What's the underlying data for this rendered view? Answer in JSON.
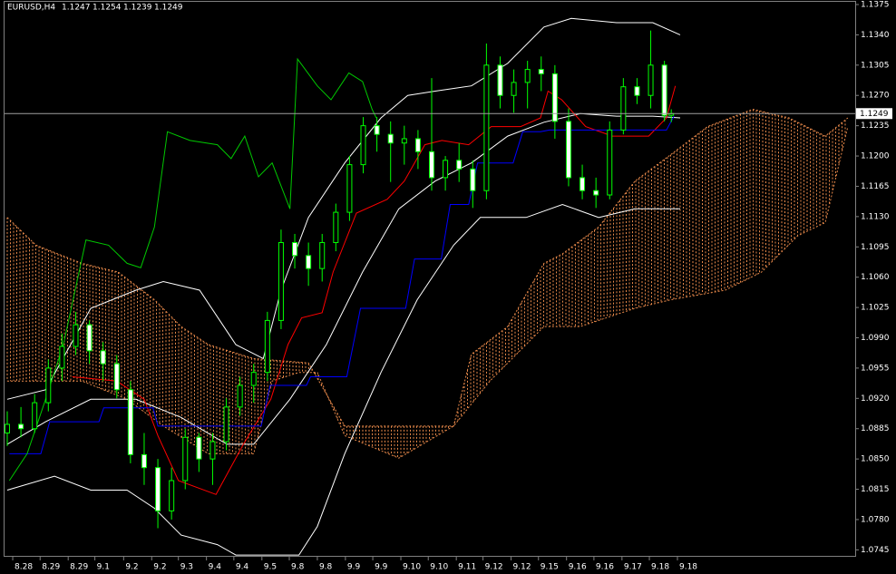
{
  "chart_data": {
    "type": "candlestick",
    "symbol": "EURUSD,H4",
    "ohlc": [
      1.1247,
      1.1254,
      1.1239,
      1.1249
    ],
    "xlim": [
      0,
      124
    ],
    "ylim": [
      1.0737,
      1.1375
    ],
    "yticks": [
      1.1375,
      {
        "value": 1.134,
        "label": "1.1340"
      },
      1.1305,
      {
        "value": 1.127,
        "label": "1.1270"
      },
      1.1235,
      {
        "value": 1.12,
        "label": "1.1200"
      },
      1.1165,
      {
        "value": 1.113,
        "label": "1.1130"
      },
      1.1095,
      {
        "value": 1.106,
        "label": "1.1060"
      },
      1.1025,
      {
        "value": 1.099,
        "label": "1.0990"
      },
      1.0955,
      {
        "value": 1.092,
        "label": "1.0920"
      },
      1.0885,
      {
        "value": 1.085,
        "label": "1.0850"
      },
      1.0815,
      {
        "value": 1.078,
        "label": "1.0780"
      },
      1.0745
    ],
    "xticks": [
      {
        "value": 0.8,
        "label": "8.28"
      },
      {
        "value": 4.8,
        "label": "8.29"
      },
      {
        "value": 8.9,
        "label": "8.29"
      },
      {
        "value": 12.8,
        "label": "9.1"
      },
      {
        "value": 17,
        "label": "9.2"
      },
      {
        "value": 21.1,
        "label": "9.2"
      },
      {
        "value": 25,
        "label": "9.3"
      },
      {
        "value": 29.1,
        "label": "9.4"
      },
      {
        "value": 33.1,
        "label": "9.4"
      },
      {
        "value": 37.2,
        "label": "9.5"
      },
      {
        "value": 41.2,
        "label": "9.8"
      },
      {
        "value": 45.3,
        "label": "9.8"
      },
      {
        "value": 49.4,
        "label": "9.9"
      },
      {
        "value": 53.4,
        "label": "9.9"
      },
      {
        "value": 57.5,
        "label": "9.10"
      },
      {
        "value": 61.5,
        "label": "9.10"
      },
      {
        "value": 65.6,
        "label": "9.11"
      },
      {
        "value": 69.5,
        "label": "9.12"
      },
      {
        "value": 73.6,
        "label": "9.12"
      },
      {
        "value": 77.6,
        "label": "9.15"
      },
      {
        "value": 81.7,
        "label": "9.16"
      },
      {
        "value": 85.7,
        "label": "9.16"
      },
      {
        "value": 89.8,
        "label": "9.17"
      },
      {
        "value": 93.8,
        "label": "9.18"
      },
      {
        "value": 97.9,
        "label": "9.18"
      }
    ],
    "last_price": 1.1249,
    "candles": {
      "bull_color": "#000000",
      "bear_color": "#ffffff",
      "outline_color": "#00ff00",
      "x": [
        0,
        2,
        4,
        6,
        8,
        10,
        12,
        14,
        16,
        18,
        20,
        22,
        24,
        26,
        28,
        30,
        32,
        34,
        36,
        38,
        40,
        42,
        44,
        46,
        48,
        50,
        52,
        54,
        56,
        58,
        60,
        62,
        64,
        66,
        68,
        70,
        72,
        74,
        76,
        78,
        80,
        82,
        84,
        86,
        88,
        90,
        92,
        94,
        96,
        97
      ],
      "open": [
        1.088,
        1.089,
        1.0885,
        1.0915,
        1.0955,
        1.098,
        1.1005,
        1.0975,
        1.096,
        1.093,
        1.0855,
        1.084,
        1.079,
        1.0825,
        1.0875,
        1.085,
        1.087,
        1.091,
        1.0935,
        1.095,
        1.101,
        1.11,
        1.1085,
        1.107,
        1.11,
        1.1135,
        1.119,
        1.1235,
        1.1225,
        1.1215,
        1.122,
        1.1205,
        1.1175,
        1.1195,
        1.1185,
        1.116,
        1.1305,
        1.127,
        1.1285,
        1.13,
        1.1295,
        1.124,
        1.1175,
        1.116,
        1.1155,
        1.123,
        1.128,
        1.127,
        1.1305,
        1.1247
      ],
      "high": [
        1.0905,
        1.091,
        1.0925,
        1.0965,
        1.0995,
        1.102,
        1.101,
        1.0985,
        1.097,
        1.094,
        1.088,
        1.085,
        1.084,
        1.0885,
        1.088,
        1.088,
        1.092,
        1.0945,
        1.096,
        1.102,
        1.1115,
        1.111,
        1.11,
        1.111,
        1.1145,
        1.12,
        1.1245,
        1.1245,
        1.124,
        1.1235,
        1.123,
        1.129,
        1.12,
        1.1215,
        1.1195,
        1.133,
        1.1315,
        1.13,
        1.131,
        1.1315,
        1.1305,
        1.1255,
        1.119,
        1.1175,
        1.124,
        1.129,
        1.129,
        1.1345,
        1.131,
        1.1254
      ],
      "low": [
        1.0865,
        1.0875,
        1.088,
        1.0905,
        1.094,
        1.097,
        1.096,
        1.094,
        1.092,
        1.0845,
        1.082,
        1.077,
        1.078,
        1.0815,
        1.0835,
        1.082,
        1.086,
        1.09,
        1.0915,
        1.094,
        1.1,
        1.107,
        1.105,
        1.1055,
        1.109,
        1.1125,
        1.118,
        1.1205,
        1.117,
        1.119,
        1.1185,
        1.116,
        1.116,
        1.117,
        1.114,
        1.115,
        1.1255,
        1.125,
        1.1255,
        1.1275,
        1.122,
        1.1165,
        1.115,
        1.114,
        1.115,
        1.1225,
        1.126,
        1.1255,
        1.124,
        1.1239
      ],
      "close": [
        1.089,
        1.0885,
        1.0915,
        1.0955,
        1.098,
        1.1005,
        1.0975,
        1.096,
        1.093,
        1.0855,
        1.084,
        1.079,
        1.0825,
        1.0875,
        1.085,
        1.087,
        1.091,
        1.0935,
        1.095,
        1.101,
        1.11,
        1.1085,
        1.107,
        1.11,
        1.1135,
        1.119,
        1.1235,
        1.1225,
        1.1215,
        1.122,
        1.1205,
        1.1175,
        1.1195,
        1.1185,
        1.116,
        1.1305,
        1.127,
        1.1285,
        1.13,
        1.1295,
        1.124,
        1.1175,
        1.116,
        1.1155,
        1.123,
        1.128,
        1.127,
        1.1305,
        1.1247,
        1.1249
      ]
    },
    "cloud": {
      "color": "#e8894a",
      "span_a": {
        "x": [
          0,
          4.2,
          10.9,
          16.2,
          21.5,
          25.4,
          29.4,
          36,
          44,
          49.3,
          57.2,
          65.2,
          67.8,
          73.1,
          78.4,
          81.1,
          86.4,
          91.7,
          97,
          102.3,
          108.9,
          114.2,
          119.5,
          122.8
        ],
        "values": [
          1.1129,
          1.1097,
          1.1076,
          1.1066,
          1.1034,
          1.1003,
          1.0982,
          1.0966,
          1.0961,
          1.0888,
          1.0888,
          1.0888,
          1.0971,
          1.1003,
          1.1076,
          1.1087,
          1.1118,
          1.1171,
          1.1202,
          1.1234,
          1.1254,
          1.1244,
          1.1223,
          1.1244
        ]
      },
      "span_b": {
        "x": [
          0,
          10.9,
          17.5,
          22.8,
          29.4,
          36,
          38.7,
          42.6,
          45.3,
          49.3,
          57.2,
          65.2,
          70.5,
          78.4,
          83.7,
          91.7,
          97,
          104.9,
          110.2,
          115.5,
          119.5,
          122.8
        ],
        "values": [
          1.094,
          1.094,
          1.0919,
          1.0888,
          1.0856,
          1.0856,
          1.094,
          1.095,
          1.095,
          1.0877,
          1.0851,
          1.0888,
          1.094,
          1.1003,
          1.1003,
          1.1024,
          1.1034,
          1.1045,
          1.1066,
          1.1108,
          1.1123,
          1.1234
        ]
      }
    },
    "series": [
      {
        "color": "#ffffff",
        "x": [
          0,
          5.6,
          12.2,
          18.8,
          22.8,
          28.1,
          33.4,
          37.4,
          40,
          44,
          49.3,
          54.6,
          58.5,
          62.5,
          67.8,
          73.1,
          78.4,
          82.4,
          89,
          94.3,
          98.3
        ],
        "values": [
          1.0919,
          1.093,
          1.1024,
          1.1045,
          1.1055,
          1.1045,
          1.0982,
          1.0966,
          1.1045,
          1.1129,
          1.1192,
          1.1244,
          1.127,
          1.1275,
          1.1281,
          1.1307,
          1.1349,
          1.1359,
          1.1354,
          1.1354,
          1.134
        ]
      },
      {
        "color": "#ffffff",
        "x": [
          0,
          5.6,
          12.2,
          18.8,
          25.4,
          32.1,
          36,
          41.3,
          46.6,
          51.9,
          57.2,
          62.5,
          67.8,
          73.1,
          78.4,
          83.7,
          89,
          94.3,
          98.3
        ],
        "values": [
          1.0867,
          1.0893,
          1.0919,
          1.0919,
          1.0898,
          1.0867,
          1.0867,
          1.0919,
          1.0982,
          1.1066,
          1.1139,
          1.1171,
          1.1192,
          1.1223,
          1.1239,
          1.1249,
          1.1246,
          1.1246,
          1.1244
        ]
      },
      {
        "color": "#ffffff",
        "x": [
          0,
          6.9,
          12.2,
          17.5,
          21.5,
          25.4,
          30.7,
          33.4,
          42.6,
          45.3,
          49.3,
          54.6,
          59.9,
          65.2,
          69.1,
          75.8,
          81.1,
          86.4,
          91.7,
          98.3
        ],
        "values": [
          1.0814,
          1.083,
          1.0814,
          1.0814,
          1.0793,
          1.0762,
          1.0751,
          1.0739,
          1.0739,
          1.0772,
          1.0856,
          1.095,
          1.1034,
          1.1097,
          1.1129,
          1.1129,
          1.1144,
          1.1129,
          1.1139,
          1.1139
        ]
      },
      {
        "color": "#ff0000",
        "x": [
          9.5,
          16,
          20,
          22,
          25,
          30.5,
          34.5,
          38.5,
          41,
          43,
          46,
          47.6,
          51,
          55.5,
          58,
          61,
          63.5,
          67.4,
          70.7,
          75,
          77.9,
          79,
          81,
          84.5,
          88.4,
          93.7,
          96.3,
          97.6
        ],
        "values": [
          1.0945,
          1.094,
          1.0919,
          1.0877,
          1.0825,
          1.0809,
          1.0867,
          1.0919,
          1.0982,
          1.1013,
          1.1019,
          1.1066,
          1.1134,
          1.115,
          1.1171,
          1.1213,
          1.1218,
          1.1213,
          1.1234,
          1.1234,
          1.1244,
          1.1275,
          1.1265,
          1.1234,
          1.1223,
          1.1223,
          1.1244,
          1.1281
        ]
      },
      {
        "color": "#0000ff",
        "x": [
          0.3,
          4.9,
          6.2,
          13.4,
          14.1,
          21.3,
          22,
          37.1,
          38.4,
          43.7,
          44.3,
          49.6,
          51.6,
          58.2,
          59.5,
          63.4,
          64.7,
          67.4,
          68.7,
          73.9,
          75.3,
          77.9,
          79.2,
          96.3,
          97.4
        ],
        "values": [
          1.0856,
          1.0856,
          1.0893,
          1.0893,
          1.0909,
          1.0909,
          1.0888,
          1.0888,
          1.0935,
          1.0935,
          1.0945,
          1.0945,
          1.1024,
          1.1024,
          1.1081,
          1.1081,
          1.1144,
          1.1144,
          1.1192,
          1.1192,
          1.1228,
          1.1228,
          1.123,
          1.123,
          1.1246
        ]
      },
      {
        "color": "#00c800",
        "x": [
          0.3,
          2.9,
          5.6,
          8.2,
          11.5,
          14.8,
          17.5,
          19.5,
          21.5,
          23.4,
          26.7,
          30.7,
          32.7,
          34.7,
          36.7,
          38.7,
          41.3,
          42.4,
          45.3,
          47.3,
          49.9,
          51.9,
          53.3,
          53.9
        ],
        "values": [
          1.0825,
          1.0856,
          1.0919,
          1.0982,
          1.1103,
          1.1097,
          1.1076,
          1.1071,
          1.1118,
          1.1228,
          1.1218,
          1.1213,
          1.1197,
          1.1223,
          1.1176,
          1.1192,
          1.1139,
          1.1312,
          1.1281,
          1.1265,
          1.1296,
          1.1286,
          1.1254,
          1.1244
        ]
      }
    ]
  }
}
